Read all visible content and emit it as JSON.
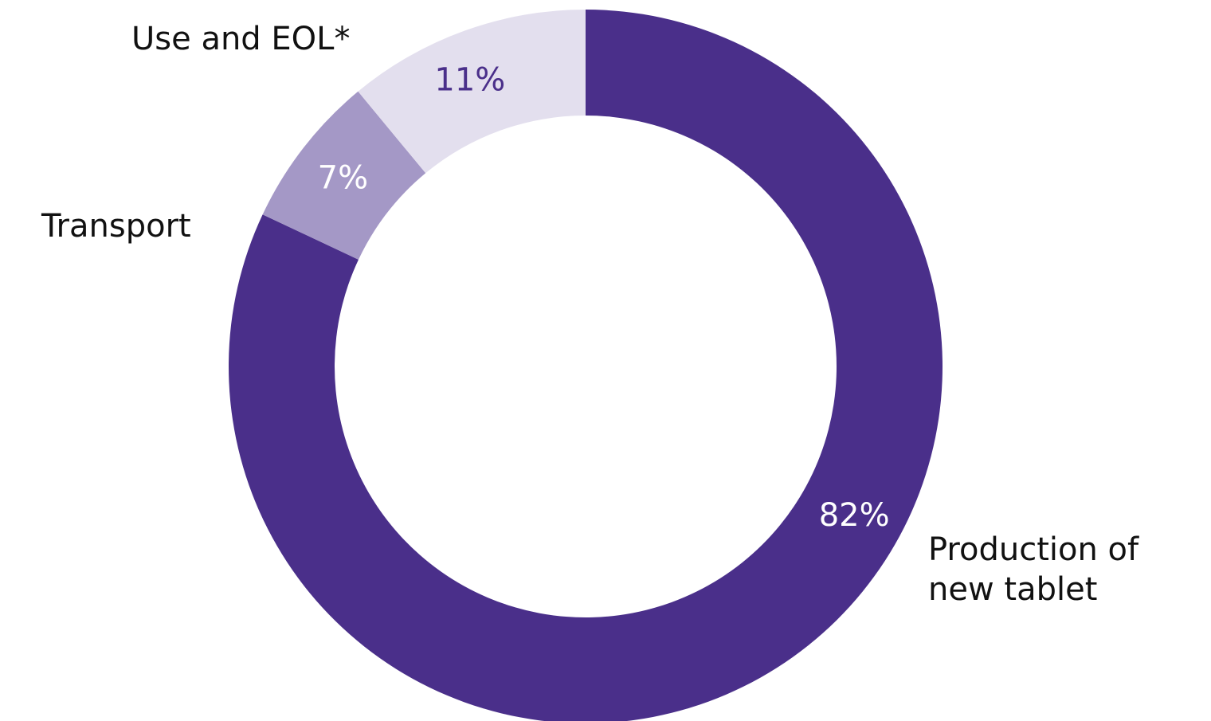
{
  "chart_data": {
    "type": "pie",
    "variant": "donut",
    "categories": [
      "Production of new tablet",
      "Transport",
      "Use and EOL*"
    ],
    "values": [
      82,
      7,
      11
    ],
    "value_labels": [
      "82%",
      "7%",
      "11%"
    ],
    "colors": [
      "#4a2f8a",
      "#a498c6",
      "#e3dfee"
    ],
    "value_label_colors": [
      "#ffffff",
      "#ffffff",
      "#4a2f8a"
    ],
    "label_lines": [
      [
        "Production of",
        "new tablet"
      ],
      [
        "Transport"
      ],
      [
        "Use and EOL*"
      ]
    ]
  }
}
